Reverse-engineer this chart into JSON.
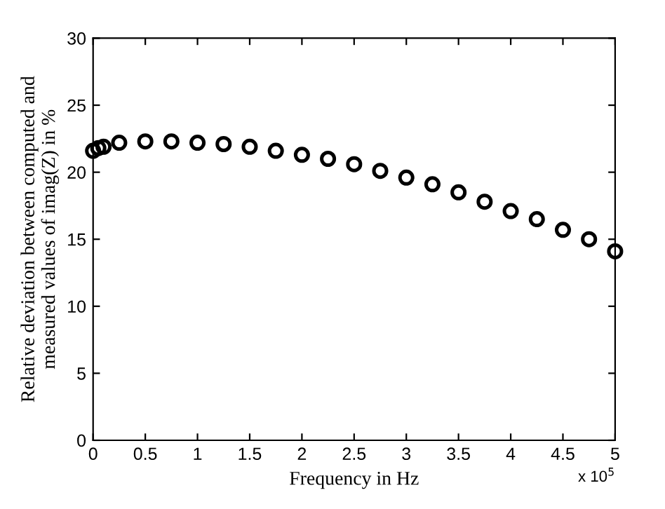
{
  "chart_data": {
    "type": "scatter",
    "xlabel": "Frequency in Hz",
    "ylabel": "Relative deviation between computed and\nmeasured values of imag(Z) in %",
    "x": [
      0,
      0.05,
      0.1,
      0.25,
      0.5,
      0.75,
      1,
      1.25,
      1.5,
      1.75,
      2,
      2.25,
      2.5,
      2.75,
      3,
      3.25,
      3.5,
      3.75,
      4,
      4.25,
      4.5,
      4.75,
      5
    ],
    "series": [
      {
        "color": "#000000",
        "values": [
          21.6,
          21.8,
          21.9,
          22.2,
          22.3,
          22.3,
          22.2,
          22.1,
          21.9,
          21.6,
          21.3,
          21.0,
          20.6,
          20.1,
          19.6,
          19.1,
          18.5,
          17.8,
          17.1,
          16.5,
          15.7,
          15.0,
          14.1
        ]
      }
    ],
    "marker": "circle",
    "xlim": [
      0,
      5
    ],
    "ylim": [
      0,
      30
    ],
    "xticks": [
      0,
      0.5,
      1,
      1.5,
      2,
      2.5,
      3,
      3.5,
      4,
      4.5,
      5
    ],
    "yticks": [
      0,
      5,
      10,
      15,
      20,
      25,
      30
    ],
    "annotations": [
      "x 10$^{5}$"
    ]
  }
}
